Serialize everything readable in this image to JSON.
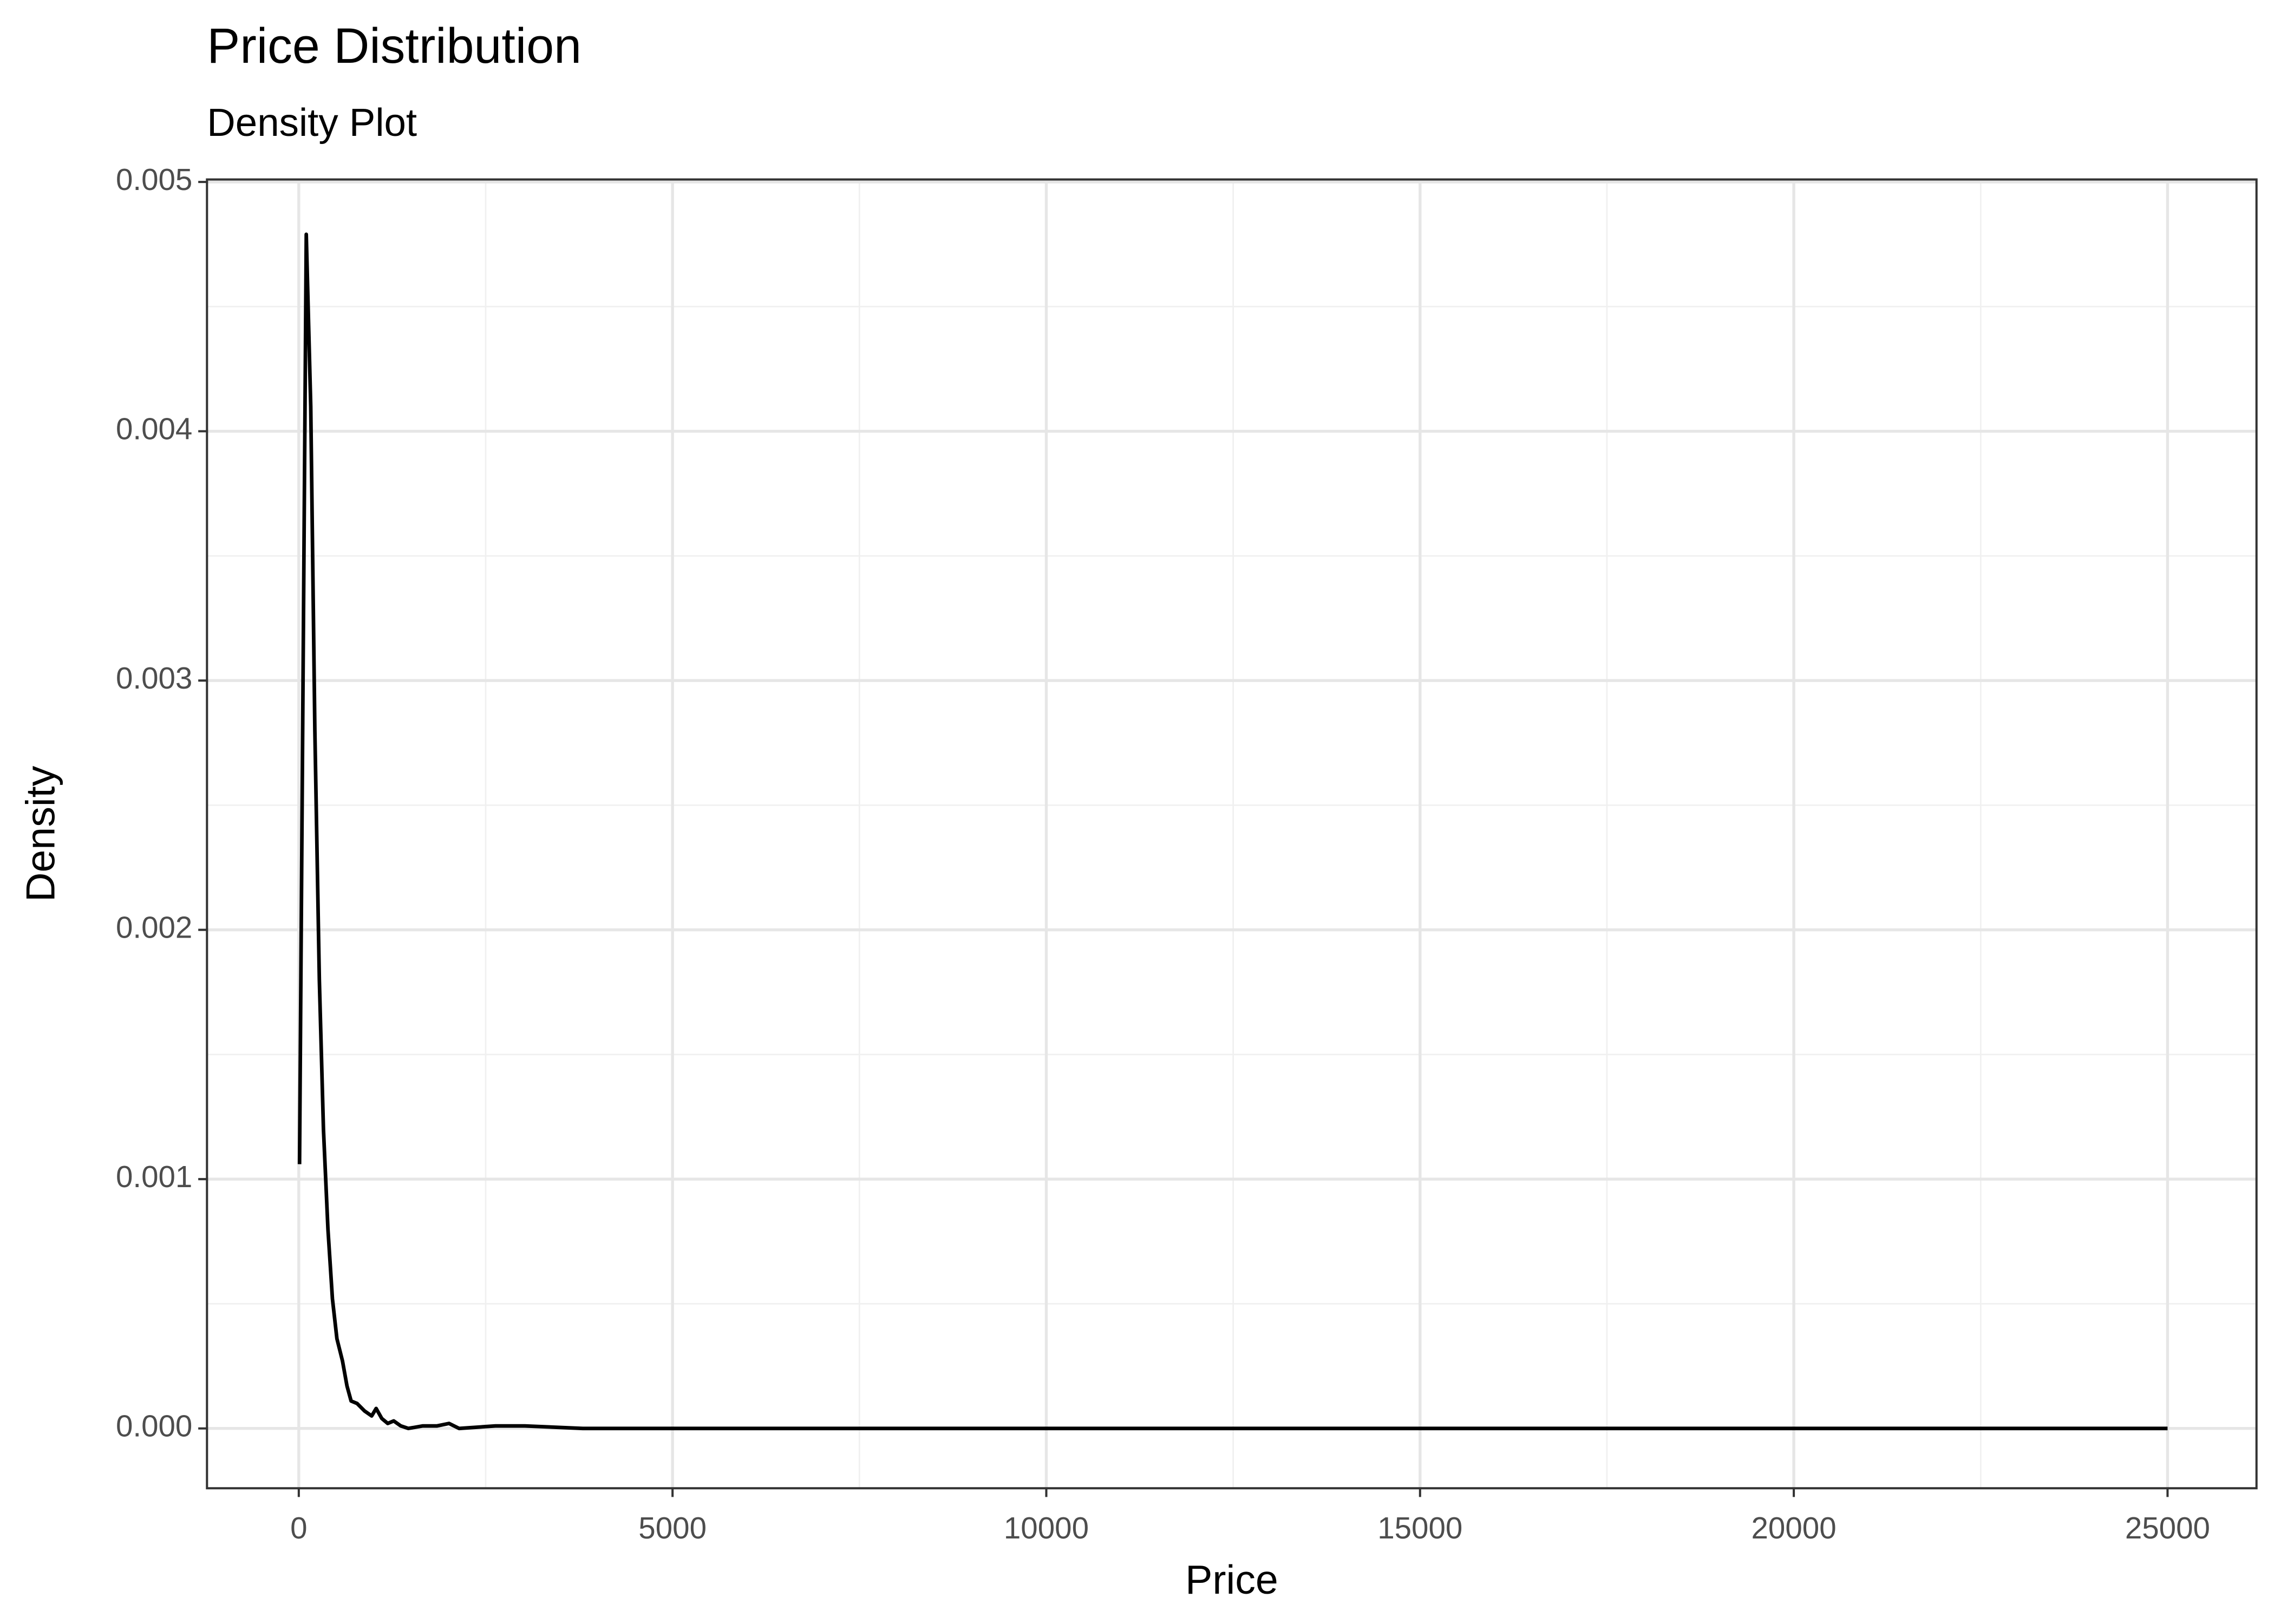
{
  "chart_data": {
    "type": "line",
    "title": "Price Distribution",
    "subtitle": "Density Plot",
    "x_label": "Price",
    "y_label": "Density",
    "x": [
      10,
      100,
      160,
      215,
      275,
      330,
      390,
      450,
      510,
      585,
      645,
      700,
      780,
      880,
      975,
      1035,
      1110,
      1190,
      1270,
      1365,
      1465,
      1660,
      1850,
      2010,
      2145,
      2630,
      3025,
      3800,
      25000
    ],
    "series": [
      {
        "name": "Density",
        "color": "#000000",
        "values": [
          0.00106,
          0.00479,
          0.0041,
          0.0028,
          0.0018,
          0.0012,
          0.0008,
          0.00052,
          0.00036,
          0.00027,
          0.00017,
          0.00011,
          0.0001,
          7e-05,
          5e-05,
          8e-05,
          4e-05,
          2e-05,
          3e-05,
          1e-05,
          0.0,
          1e-05,
          1e-05,
          2e-05,
          0.0,
          1e-05,
          1e-05,
          0.0,
          0.0
        ]
      }
    ],
    "xlim": [
      -1228,
      26190
    ],
    "ylim": [
      -0.00024,
      0.00501
    ],
    "xticks": [
      0,
      5000,
      10000,
      15000,
      20000,
      25000
    ],
    "yticks": [
      {
        "value": 0,
        "label": "0.000"
      },
      {
        "value": 0.001,
        "label": "0.001"
      },
      {
        "value": 0.002,
        "label": "0.002"
      },
      {
        "value": 0.003,
        "label": "0.003"
      },
      {
        "value": 0.004,
        "label": "0.004"
      },
      {
        "value": 0.005,
        "label": "0.005"
      }
    ],
    "grid": true,
    "minor_grid": true
  }
}
